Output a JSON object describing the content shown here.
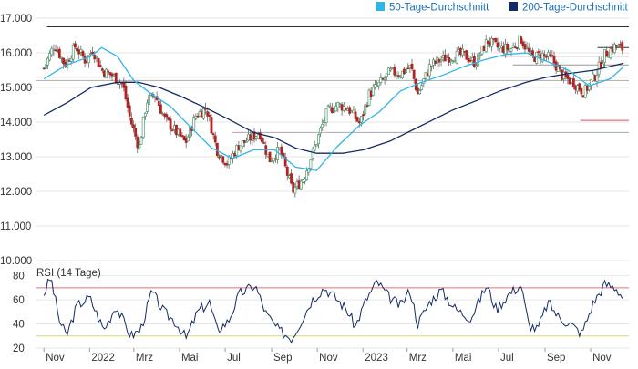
{
  "chart_data": [
    {
      "type": "candlestick_line",
      "panel": "price",
      "legend_placement": "top-right",
      "series": [
        {
          "name": "50-Tage-Durchschnitt",
          "color": "#33b4e5"
        },
        {
          "name": "200-Tage-Durchschnitt",
          "color": "#132a63"
        }
      ],
      "ylim": [
        10000,
        17000
      ],
      "yticks": [
        "17.000",
        "16.000",
        "15.000",
        "14.000",
        "13.000",
        "12.000",
        "11.000",
        "10.000"
      ],
      "ytick_values": [
        17000,
        16000,
        15000,
        14000,
        13000,
        12000,
        11000,
        10000
      ],
      "xtick_labels": [
        "Nov",
        "2022",
        "Mrz",
        "Mai",
        "Jul",
        "Sep",
        "Nov",
        "2023",
        "Mrz",
        "Mai",
        "Jul",
        "Sep",
        "Nov"
      ],
      "price_points": [
        {
          "x": "2021-11-01",
          "y": 15550
        },
        {
          "x": "2021-11-15",
          "y": 16250
        },
        {
          "x": "2021-11-29",
          "y": 15650
        },
        {
          "x": "2021-12-13",
          "y": 16200
        },
        {
          "x": "2021-12-27",
          "y": 15750
        },
        {
          "x": "2022-01-05",
          "y": 16100
        },
        {
          "x": "2022-01-17",
          "y": 15500
        },
        {
          "x": "2022-01-31",
          "y": 15350
        },
        {
          "x": "2022-02-14",
          "y": 15100
        },
        {
          "x": "2022-02-24",
          "y": 14100
        },
        {
          "x": "2022-03-08",
          "y": 13250
        },
        {
          "x": "2022-03-18",
          "y": 14600
        },
        {
          "x": "2022-03-29",
          "y": 14800
        },
        {
          "x": "2022-04-11",
          "y": 14100
        },
        {
          "x": "2022-04-25",
          "y": 13750
        },
        {
          "x": "2022-05-09",
          "y": 13400
        },
        {
          "x": "2022-05-23",
          "y": 14200
        },
        {
          "x": "2022-06-06",
          "y": 14400
        },
        {
          "x": "2022-06-20",
          "y": 13200
        },
        {
          "x": "2022-07-04",
          "y": 12800
        },
        {
          "x": "2022-07-18",
          "y": 13300
        },
        {
          "x": "2022-08-01",
          "y": 13500
        },
        {
          "x": "2022-08-16",
          "y": 13700
        },
        {
          "x": "2022-08-29",
          "y": 12900
        },
        {
          "x": "2022-09-12",
          "y": 13200
        },
        {
          "x": "2022-09-29",
          "y": 12000
        },
        {
          "x": "2022-10-14",
          "y": 12400
        },
        {
          "x": "2022-10-28",
          "y": 13250
        },
        {
          "x": "2022-11-14",
          "y": 14300
        },
        {
          "x": "2022-11-28",
          "y": 14500
        },
        {
          "x": "2022-12-12",
          "y": 14400
        },
        {
          "x": "2022-12-28",
          "y": 13950
        },
        {
          "x": "2023-01-09",
          "y": 14800
        },
        {
          "x": "2023-01-23",
          "y": 15100
        },
        {
          "x": "2023-02-06",
          "y": 15450
        },
        {
          "x": "2023-02-20",
          "y": 15400
        },
        {
          "x": "2023-03-06",
          "y": 15600
        },
        {
          "x": "2023-03-15",
          "y": 14800
        },
        {
          "x": "2023-03-31",
          "y": 15600
        },
        {
          "x": "2023-04-14",
          "y": 15800
        },
        {
          "x": "2023-04-28",
          "y": 15900
        },
        {
          "x": "2023-05-15",
          "y": 15950
        },
        {
          "x": "2023-05-31",
          "y": 15700
        },
        {
          "x": "2023-06-16",
          "y": 16350
        },
        {
          "x": "2023-06-30",
          "y": 16150
        },
        {
          "x": "2023-07-17",
          "y": 16100
        },
        {
          "x": "2023-07-31",
          "y": 16400
        },
        {
          "x": "2023-08-14",
          "y": 15850
        },
        {
          "x": "2023-08-28",
          "y": 15950
        },
        {
          "x": "2023-09-11",
          "y": 15800
        },
        {
          "x": "2023-09-25",
          "y": 15300
        },
        {
          "x": "2023-10-09",
          "y": 15150
        },
        {
          "x": "2023-10-23",
          "y": 14850
        },
        {
          "x": "2023-11-06",
          "y": 15300
        },
        {
          "x": "2023-11-20",
          "y": 15950
        },
        {
          "x": "2023-12-04",
          "y": 16200
        },
        {
          "x": "2023-12-15",
          "y": 16100
        }
      ],
      "ma50_points": [
        {
          "x": "2021-11-01",
          "y": 15250
        },
        {
          "x": "2021-12-01",
          "y": 15650
        },
        {
          "x": "2022-01-03",
          "y": 15900
        },
        {
          "x": "2022-01-17",
          "y": 16150
        },
        {
          "x": "2022-02-07",
          "y": 15900
        },
        {
          "x": "2022-03-01",
          "y": 15200
        },
        {
          "x": "2022-03-22",
          "y": 14850
        },
        {
          "x": "2022-04-19",
          "y": 14450
        },
        {
          "x": "2022-05-16",
          "y": 13850
        },
        {
          "x": "2022-06-13",
          "y": 13250
        },
        {
          "x": "2022-07-11",
          "y": 12950
        },
        {
          "x": "2022-08-08",
          "y": 13200
        },
        {
          "x": "2022-09-05",
          "y": 13200
        },
        {
          "x": "2022-10-03",
          "y": 12700
        },
        {
          "x": "2022-10-31",
          "y": 12600
        },
        {
          "x": "2022-11-28",
          "y": 13300
        },
        {
          "x": "2022-12-27",
          "y": 13900
        },
        {
          "x": "2023-01-23",
          "y": 14300
        },
        {
          "x": "2023-02-20",
          "y": 14900
        },
        {
          "x": "2023-03-20",
          "y": 15150
        },
        {
          "x": "2023-04-17",
          "y": 15350
        },
        {
          "x": "2023-05-15",
          "y": 15600
        },
        {
          "x": "2023-06-12",
          "y": 15800
        },
        {
          "x": "2023-07-10",
          "y": 15950
        },
        {
          "x": "2023-08-07",
          "y": 16000
        },
        {
          "x": "2023-09-04",
          "y": 15750
        },
        {
          "x": "2023-10-02",
          "y": 15500
        },
        {
          "x": "2023-10-30",
          "y": 15050
        },
        {
          "x": "2023-11-27",
          "y": 15250
        },
        {
          "x": "2023-12-15",
          "y": 15600
        }
      ],
      "ma200_points": [
        {
          "x": "2021-11-01",
          "y": 14200
        },
        {
          "x": "2021-12-01",
          "y": 14550
        },
        {
          "x": "2022-01-03",
          "y": 15000
        },
        {
          "x": "2022-02-07",
          "y": 15150
        },
        {
          "x": "2022-03-07",
          "y": 15150
        },
        {
          "x": "2022-04-04",
          "y": 15000
        },
        {
          "x": "2022-05-02",
          "y": 14750
        },
        {
          "x": "2022-06-06",
          "y": 14400
        },
        {
          "x": "2022-07-04",
          "y": 14100
        },
        {
          "x": "2022-08-08",
          "y": 13700
        },
        {
          "x": "2022-09-05",
          "y": 13550
        },
        {
          "x": "2022-10-03",
          "y": 13250
        },
        {
          "x": "2022-10-31",
          "y": 13100
        },
        {
          "x": "2022-12-05",
          "y": 13100
        },
        {
          "x": "2023-01-02",
          "y": 13200
        },
        {
          "x": "2023-02-06",
          "y": 13450
        },
        {
          "x": "2023-03-06",
          "y": 13750
        },
        {
          "x": "2023-04-03",
          "y": 14050
        },
        {
          "x": "2023-05-01",
          "y": 14350
        },
        {
          "x": "2023-06-05",
          "y": 14650
        },
        {
          "x": "2023-07-03",
          "y": 14900
        },
        {
          "x": "2023-08-07",
          "y": 15150
        },
        {
          "x": "2023-09-04",
          "y": 15300
        },
        {
          "x": "2023-10-02",
          "y": 15400
        },
        {
          "x": "2023-11-06",
          "y": 15500
        },
        {
          "x": "2023-12-15",
          "y": 15700
        }
      ],
      "reference_levels": [
        {
          "y": 16750,
          "color": "#333333"
        },
        {
          "y": 15900,
          "color": "#999999"
        },
        {
          "y": 15300,
          "color": "#aaaaaa"
        },
        {
          "y": 15200,
          "color": "#aaaaaa"
        },
        {
          "y": 13700,
          "color": "#aaaaaa"
        },
        {
          "y": 16150,
          "color": "#333333"
        },
        {
          "y": 15650,
          "color": "#999999"
        },
        {
          "y": 14050,
          "color": "#e05050"
        }
      ],
      "grid": true
    },
    {
      "type": "line",
      "panel": "rsi",
      "title": "RSI (14 Tage)",
      "ylim": [
        20,
        85
      ],
      "yticks": [
        "80",
        "60",
        "40",
        "20"
      ],
      "ytick_values": [
        80,
        60,
        40,
        20
      ],
      "overbought": 70,
      "oversold": 30,
      "color": "#132a63",
      "rsi_points": [
        {
          "x": "2021-11-01",
          "y": 65
        },
        {
          "x": "2021-11-10",
          "y": 79
        },
        {
          "x": "2021-11-22",
          "y": 42
        },
        {
          "x": "2021-12-01",
          "y": 30
        },
        {
          "x": "2021-12-15",
          "y": 55
        },
        {
          "x": "2022-01-01",
          "y": 62
        },
        {
          "x": "2022-01-20",
          "y": 35
        },
        {
          "x": "2022-02-05",
          "y": 55
        },
        {
          "x": "2022-02-25",
          "y": 30
        },
        {
          "x": "2022-03-10",
          "y": 35
        },
        {
          "x": "2022-03-25",
          "y": 67
        },
        {
          "x": "2022-04-10",
          "y": 50
        },
        {
          "x": "2022-04-25",
          "y": 42
        },
        {
          "x": "2022-05-10",
          "y": 28
        },
        {
          "x": "2022-05-25",
          "y": 50
        },
        {
          "x": "2022-06-10",
          "y": 58
        },
        {
          "x": "2022-06-20",
          "y": 35
        },
        {
          "x": "2022-07-05",
          "y": 42
        },
        {
          "x": "2022-07-20",
          "y": 65
        },
        {
          "x": "2022-08-10",
          "y": 72
        },
        {
          "x": "2022-08-25",
          "y": 48
        },
        {
          "x": "2022-09-10",
          "y": 35
        },
        {
          "x": "2022-09-28",
          "y": 28
        },
        {
          "x": "2022-10-10",
          "y": 42
        },
        {
          "x": "2022-10-25",
          "y": 60
        },
        {
          "x": "2022-11-10",
          "y": 70
        },
        {
          "x": "2022-11-25",
          "y": 62
        },
        {
          "x": "2022-12-10",
          "y": 52
        },
        {
          "x": "2022-12-22",
          "y": 38
        },
        {
          "x": "2023-01-05",
          "y": 60
        },
        {
          "x": "2023-01-20",
          "y": 75
        },
        {
          "x": "2023-02-05",
          "y": 62
        },
        {
          "x": "2023-02-20",
          "y": 55
        },
        {
          "x": "2023-03-05",
          "y": 68
        },
        {
          "x": "2023-03-15",
          "y": 40
        },
        {
          "x": "2023-03-31",
          "y": 58
        },
        {
          "x": "2023-04-15",
          "y": 68
        },
        {
          "x": "2023-05-05",
          "y": 52
        },
        {
          "x": "2023-05-25",
          "y": 45
        },
        {
          "x": "2023-06-15",
          "y": 72
        },
        {
          "x": "2023-06-28",
          "y": 52
        },
        {
          "x": "2023-07-15",
          "y": 65
        },
        {
          "x": "2023-07-31",
          "y": 72
        },
        {
          "x": "2023-08-10",
          "y": 40
        },
        {
          "x": "2023-08-22",
          "y": 35
        },
        {
          "x": "2023-09-05",
          "y": 58
        },
        {
          "x": "2023-09-20",
          "y": 45
        },
        {
          "x": "2023-10-05",
          "y": 40
        },
        {
          "x": "2023-10-20",
          "y": 32
        },
        {
          "x": "2023-11-05",
          "y": 58
        },
        {
          "x": "2023-11-20",
          "y": 73
        },
        {
          "x": "2023-12-05",
          "y": 70
        },
        {
          "x": "2023-12-15",
          "y": 61
        }
      ],
      "grid": true
    }
  ]
}
